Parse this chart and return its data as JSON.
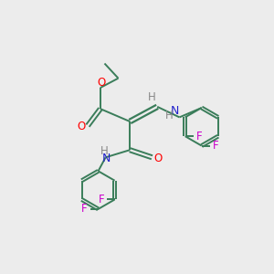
{
  "background_color": "#ececec",
  "bond_color": "#3a7d5a",
  "atom_colors": {
    "O": "#ff0000",
    "N": "#2222cc",
    "F": "#cc00cc",
    "H": "#888888",
    "C": "#3a7d5a"
  },
  "figsize": [
    3.0,
    3.0
  ],
  "dpi": 100
}
